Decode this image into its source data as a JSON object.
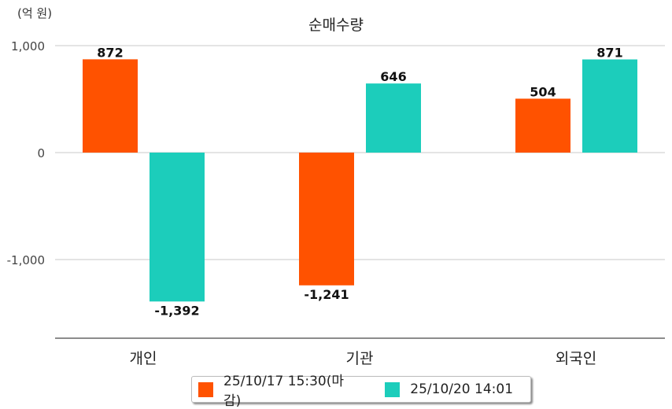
{
  "chart_data": {
    "type": "bar",
    "title": "순매수량",
    "unit_label": "(억 원)",
    "xlabel": "",
    "ylabel": "",
    "categories": [
      "개인",
      "기관",
      "외국인"
    ],
    "series": [
      {
        "name": "25/10/17 15:30(마감)",
        "color": "#ff5200",
        "values": [
          872,
          -1241,
          504
        ],
        "labels": [
          "872",
          "-1,241",
          "504"
        ]
      },
      {
        "name": "25/10/20 14:01",
        "color": "#1ccdbb",
        "values": [
          -1392,
          646,
          871
        ],
        "labels": [
          "-1,392",
          "646",
          "871"
        ]
      }
    ],
    "yticks": [
      1000,
      0,
      -1000
    ],
    "ytick_labels": [
      "1,000",
      "0",
      "-1,000"
    ],
    "ylim": [
      -1735,
      1000
    ],
    "grid": true,
    "legend_position": "bottom"
  }
}
